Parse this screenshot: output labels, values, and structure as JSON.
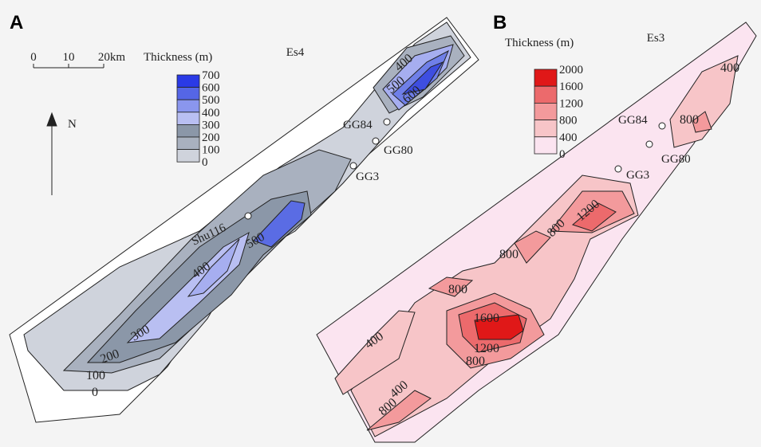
{
  "panels": [
    {
      "letter": "A",
      "title": "Es4",
      "north": "N",
      "scale_bar": [
        "0",
        "10",
        "20km"
      ],
      "legend": {
        "title": "Thickness (m)",
        "labels": [
          "700",
          "600",
          "500",
          "400",
          "300",
          "200",
          "100",
          "0"
        ],
        "colors": [
          "#2a3ae6",
          "#5566e6",
          "#8a96ee",
          "#b9bff2",
          "#8b97a8",
          "#a9b1bf",
          "#cfd3dc"
        ]
      },
      "wells": [
        "GG84",
        "GG80",
        "GG3",
        "Shu116"
      ],
      "contour_labels": [
        "400",
        "500",
        "600",
        "500",
        "400",
        "300",
        "200",
        "100",
        "0"
      ]
    },
    {
      "letter": "B",
      "title": "Es3",
      "legend": {
        "title": "Thickness (m)",
        "labels": [
          "2000",
          "1600",
          "1200",
          "800",
          "400",
          "0"
        ],
        "colors": [
          "#e01818",
          "#ec6a6c",
          "#f39a9c",
          "#f7c5c8",
          "#fbe4f0"
        ]
      },
      "wells": [
        "GG84",
        "GG80",
        "GG3"
      ],
      "contour_labels": [
        "400",
        "800",
        "1200",
        "800",
        "800",
        "800",
        "1600",
        "1200",
        "800",
        "400",
        "400",
        "800"
      ]
    }
  ]
}
